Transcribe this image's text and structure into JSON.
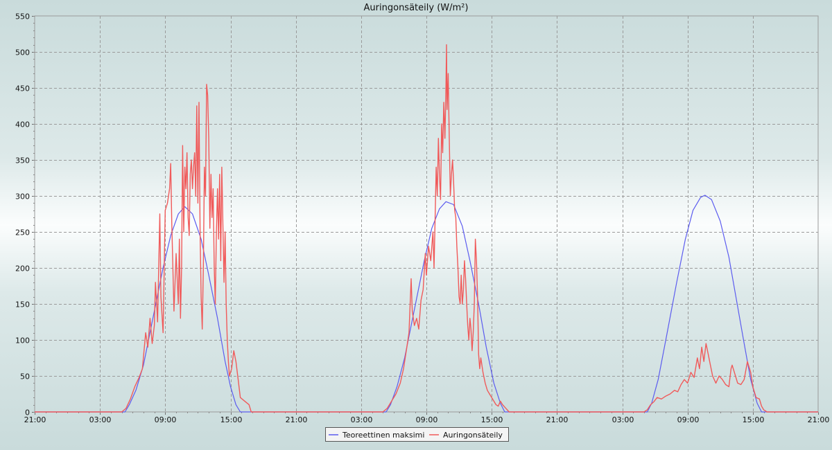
{
  "chart_data": {
    "type": "line",
    "title": "Auringonsäteily (W/m²)",
    "xlabel": "",
    "ylabel": "",
    "ylim": [
      0,
      550
    ],
    "yticks": [
      "0",
      "50",
      "100",
      "150",
      "200",
      "250",
      "300",
      "350",
      "400",
      "450",
      "500",
      "550"
    ],
    "xticks": [
      "21:00",
      "03:00",
      "09:00",
      "15:00",
      "21:00",
      "03:00",
      "09:00",
      "15:00",
      "21:00",
      "03:00",
      "09:00",
      "15:00",
      "21:00"
    ],
    "x_unit": "hours since first tick (21:00)",
    "xlim": [
      0,
      72
    ],
    "grid": true,
    "legend_position": "bottom-center",
    "series": [
      {
        "name": "Teoreettinen maksimi",
        "color": "#5b5bef",
        "points": [
          [
            0,
            0
          ],
          [
            8.0,
            0
          ],
          [
            8.3,
            0
          ],
          [
            8.7,
            10
          ],
          [
            9.3,
            30
          ],
          [
            10.0,
            65
          ],
          [
            11.0,
            140
          ],
          [
            11.8,
            200
          ],
          [
            12.5,
            245
          ],
          [
            13.2,
            275
          ],
          [
            13.8,
            285
          ],
          [
            14.5,
            275
          ],
          [
            15.3,
            240
          ],
          [
            16.0,
            190
          ],
          [
            16.8,
            130
          ],
          [
            17.5,
            70
          ],
          [
            18.0,
            35
          ],
          [
            18.5,
            10
          ],
          [
            18.9,
            0
          ],
          [
            24,
            0
          ],
          [
            32.0,
            0
          ],
          [
            32.3,
            0
          ],
          [
            32.7,
            10
          ],
          [
            33.3,
            35
          ],
          [
            34.0,
            75
          ],
          [
            35.0,
            150
          ],
          [
            35.8,
            210
          ],
          [
            36.5,
            255
          ],
          [
            37.2,
            282
          ],
          [
            37.8,
            292
          ],
          [
            38.5,
            288
          ],
          [
            39.3,
            258
          ],
          [
            40.0,
            210
          ],
          [
            40.8,
            150
          ],
          [
            41.5,
            90
          ],
          [
            42.2,
            40
          ],
          [
            42.8,
            12
          ],
          [
            43.2,
            0
          ],
          [
            48,
            0
          ],
          [
            56.0,
            0
          ],
          [
            56.3,
            0
          ],
          [
            56.7,
            12
          ],
          [
            57.3,
            45
          ],
          [
            58.0,
            100
          ],
          [
            59.0,
            180
          ],
          [
            59.8,
            240
          ],
          [
            60.5,
            280
          ],
          [
            61.2,
            298
          ],
          [
            61.6,
            301
          ],
          [
            62.2,
            295
          ],
          [
            63.0,
            265
          ],
          [
            63.8,
            215
          ],
          [
            64.5,
            155
          ],
          [
            65.2,
            95
          ],
          [
            65.8,
            45
          ],
          [
            66.4,
            12
          ],
          [
            66.8,
            0
          ],
          [
            72,
            0
          ]
        ]
      },
      {
        "name": "Auringonsäteily",
        "color": "#f05a5a",
        "points": [
          [
            0,
            0
          ],
          [
            8.0,
            0
          ],
          [
            8.4,
            5
          ],
          [
            8.8,
            18
          ],
          [
            9.2,
            35
          ],
          [
            9.6,
            48
          ],
          [
            9.9,
            60
          ],
          [
            10.2,
            110
          ],
          [
            10.4,
            90
          ],
          [
            10.6,
            130
          ],
          [
            10.8,
            95
          ],
          [
            11.0,
            120
          ],
          [
            11.1,
            180
          ],
          [
            11.3,
            125
          ],
          [
            11.5,
            275
          ],
          [
            11.6,
            160
          ],
          [
            11.8,
            110
          ],
          [
            12.0,
            280
          ],
          [
            12.2,
            290
          ],
          [
            12.4,
            310
          ],
          [
            12.5,
            345
          ],
          [
            12.6,
            260
          ],
          [
            12.8,
            140
          ],
          [
            12.9,
            180
          ],
          [
            13.0,
            220
          ],
          [
            13.2,
            150
          ],
          [
            13.3,
            240
          ],
          [
            13.4,
            130
          ],
          [
            13.5,
            200
          ],
          [
            13.6,
            370
          ],
          [
            13.7,
            250
          ],
          [
            13.8,
            340
          ],
          [
            13.9,
            310
          ],
          [
            14.0,
            360
          ],
          [
            14.1,
            270
          ],
          [
            14.2,
            245
          ],
          [
            14.3,
            330
          ],
          [
            14.4,
            350
          ],
          [
            14.5,
            310
          ],
          [
            14.6,
            340
          ],
          [
            14.7,
            360
          ],
          [
            14.8,
            300
          ],
          [
            14.9,
            425
          ],
          [
            15.0,
            290
          ],
          [
            15.1,
            430
          ],
          [
            15.2,
            250
          ],
          [
            15.3,
            160
          ],
          [
            15.4,
            115
          ],
          [
            15.5,
            200
          ],
          [
            15.6,
            340
          ],
          [
            15.7,
            300
          ],
          [
            15.8,
            455
          ],
          [
            15.9,
            440
          ],
          [
            16.0,
            380
          ],
          [
            16.1,
            255
          ],
          [
            16.2,
            330
          ],
          [
            16.3,
            270
          ],
          [
            16.4,
            310
          ],
          [
            16.5,
            200
          ],
          [
            16.6,
            150
          ],
          [
            16.7,
            250
          ],
          [
            16.8,
            310
          ],
          [
            16.9,
            240
          ],
          [
            17.0,
            330
          ],
          [
            17.1,
            210
          ],
          [
            17.2,
            340
          ],
          [
            17.3,
            260
          ],
          [
            17.4,
            180
          ],
          [
            17.5,
            250
          ],
          [
            17.6,
            150
          ],
          [
            17.7,
            100
          ],
          [
            17.8,
            70
          ],
          [
            17.9,
            50
          ],
          [
            18.1,
            60
          ],
          [
            18.3,
            85
          ],
          [
            18.5,
            70
          ],
          [
            18.7,
            45
          ],
          [
            18.9,
            20
          ],
          [
            19.3,
            15
          ],
          [
            19.7,
            10
          ],
          [
            19.9,
            0
          ],
          [
            24,
            0
          ],
          [
            32.0,
            0
          ],
          [
            32.4,
            5
          ],
          [
            32.8,
            15
          ],
          [
            33.2,
            25
          ],
          [
            33.6,
            40
          ],
          [
            33.9,
            60
          ],
          [
            34.2,
            90
          ],
          [
            34.4,
            110
          ],
          [
            34.6,
            185
          ],
          [
            34.7,
            140
          ],
          [
            34.9,
            120
          ],
          [
            35.1,
            130
          ],
          [
            35.3,
            115
          ],
          [
            35.5,
            155
          ],
          [
            35.7,
            170
          ],
          [
            35.9,
            220
          ],
          [
            36.0,
            190
          ],
          [
            36.2,
            230
          ],
          [
            36.4,
            210
          ],
          [
            36.6,
            250
          ],
          [
            36.7,
            200
          ],
          [
            36.8,
            270
          ],
          [
            36.9,
            340
          ],
          [
            37.0,
            300
          ],
          [
            37.1,
            380
          ],
          [
            37.2,
            330
          ],
          [
            37.3,
            295
          ],
          [
            37.4,
            400
          ],
          [
            37.5,
            360
          ],
          [
            37.6,
            430
          ],
          [
            37.7,
            380
          ],
          [
            37.8,
            450
          ],
          [
            37.85,
            510
          ],
          [
            37.9,
            420
          ],
          [
            38.0,
            470
          ],
          [
            38.1,
            380
          ],
          [
            38.2,
            300
          ],
          [
            38.3,
            330
          ],
          [
            38.4,
            350
          ],
          [
            38.5,
            320
          ],
          [
            38.6,
            280
          ],
          [
            38.7,
            270
          ],
          [
            38.8,
            230
          ],
          [
            38.9,
            200
          ],
          [
            39.0,
            160
          ],
          [
            39.1,
            150
          ],
          [
            39.2,
            190
          ],
          [
            39.3,
            150
          ],
          [
            39.4,
            170
          ],
          [
            39.5,
            210
          ],
          [
            39.6,
            185
          ],
          [
            39.7,
            150
          ],
          [
            39.8,
            120
          ],
          [
            39.9,
            100
          ],
          [
            40.0,
            130
          ],
          [
            40.1,
            115
          ],
          [
            40.2,
            85
          ],
          [
            40.3,
            110
          ],
          [
            40.4,
            150
          ],
          [
            40.5,
            240
          ],
          [
            40.6,
            210
          ],
          [
            40.7,
            160
          ],
          [
            40.8,
            80
          ],
          [
            40.9,
            60
          ],
          [
            41.0,
            75
          ],
          [
            41.2,
            55
          ],
          [
            41.4,
            40
          ],
          [
            41.6,
            30
          ],
          [
            41.8,
            25
          ],
          [
            42.0,
            20
          ],
          [
            42.2,
            15
          ],
          [
            42.4,
            10
          ],
          [
            42.6,
            8
          ],
          [
            42.8,
            15
          ],
          [
            43.0,
            10
          ],
          [
            43.3,
            5
          ],
          [
            43.6,
            0
          ],
          [
            48,
            0
          ],
          [
            56.0,
            0
          ],
          [
            56.3,
            3
          ],
          [
            56.6,
            10
          ],
          [
            56.9,
            14
          ],
          [
            57.2,
            20
          ],
          [
            57.6,
            18
          ],
          [
            58.0,
            22
          ],
          [
            58.4,
            25
          ],
          [
            58.8,
            30
          ],
          [
            59.1,
            28
          ],
          [
            59.4,
            38
          ],
          [
            59.7,
            45
          ],
          [
            60.0,
            40
          ],
          [
            60.3,
            55
          ],
          [
            60.6,
            48
          ],
          [
            60.9,
            75
          ],
          [
            61.1,
            60
          ],
          [
            61.3,
            90
          ],
          [
            61.5,
            70
          ],
          [
            61.7,
            95
          ],
          [
            61.9,
            80
          ],
          [
            62.1,
            65
          ],
          [
            62.3,
            50
          ],
          [
            62.6,
            40
          ],
          [
            62.9,
            50
          ],
          [
            63.2,
            45
          ],
          [
            63.5,
            38
          ],
          [
            63.8,
            35
          ],
          [
            64.0,
            60
          ],
          [
            64.1,
            65
          ],
          [
            64.3,
            55
          ],
          [
            64.6,
            40
          ],
          [
            64.9,
            38
          ],
          [
            65.2,
            45
          ],
          [
            65.5,
            70
          ],
          [
            65.8,
            55
          ],
          [
            66.0,
            35
          ],
          [
            66.3,
            20
          ],
          [
            66.6,
            18
          ],
          [
            66.8,
            8
          ],
          [
            67.0,
            3
          ],
          [
            67.3,
            0
          ],
          [
            72,
            0
          ]
        ]
      }
    ]
  }
}
